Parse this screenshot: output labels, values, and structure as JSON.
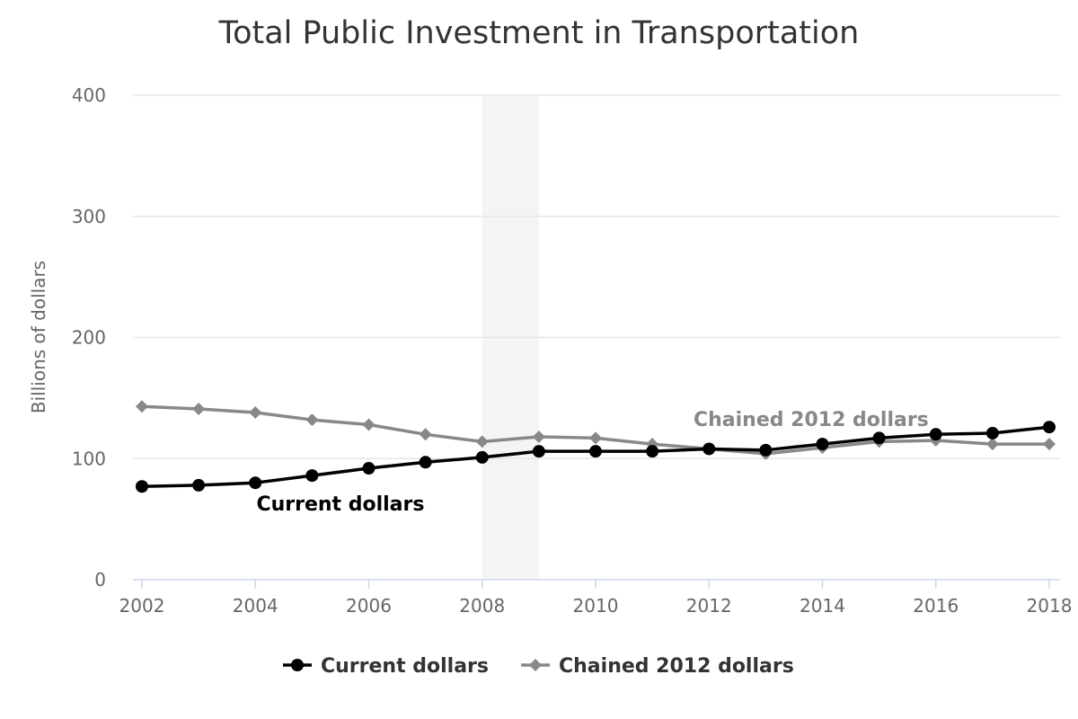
{
  "chart_data": {
    "type": "line",
    "title": "Total Public Investment in Transportation",
    "xlabel": "",
    "ylabel": "Billions of dollars",
    "x": [
      2002,
      2003,
      2004,
      2005,
      2006,
      2007,
      2008,
      2009,
      2010,
      2011,
      2012,
      2013,
      2014,
      2015,
      2016,
      2017,
      2018
    ],
    "xlim": [
      2002,
      2018
    ],
    "ylim": [
      0,
      400
    ],
    "yticks": [
      0,
      100,
      200,
      300,
      400
    ],
    "xticks": [
      2002,
      2004,
      2006,
      2008,
      2010,
      2012,
      2014,
      2016,
      2018
    ],
    "grid": true,
    "legend_position": "bottom-center",
    "shaded_band": {
      "x_start": 2008,
      "x_end": 2009,
      "color": "#f4f4f4"
    },
    "series": [
      {
        "name": "Current dollars",
        "color": "#000000",
        "marker": "circle",
        "values": [
          77,
          78,
          80,
          86,
          92,
          97,
          101,
          106,
          106,
          106,
          108,
          107,
          112,
          117,
          120,
          121,
          126
        ]
      },
      {
        "name": "Chained 2012 dollars",
        "color": "#888888",
        "marker": "diamond",
        "values": [
          143,
          141,
          138,
          132,
          128,
          120,
          114,
          118,
          117,
          112,
          108,
          104,
          109,
          114,
          115,
          112,
          112
        ]
      }
    ],
    "annotations": [
      {
        "text": "Current dollars",
        "series": 0,
        "x": 2005.5,
        "y": 63,
        "color": "#000000"
      },
      {
        "text": "Chained 2012 dollars",
        "series": 1,
        "x": 2013.8,
        "y": 133,
        "color": "#888888"
      }
    ]
  }
}
